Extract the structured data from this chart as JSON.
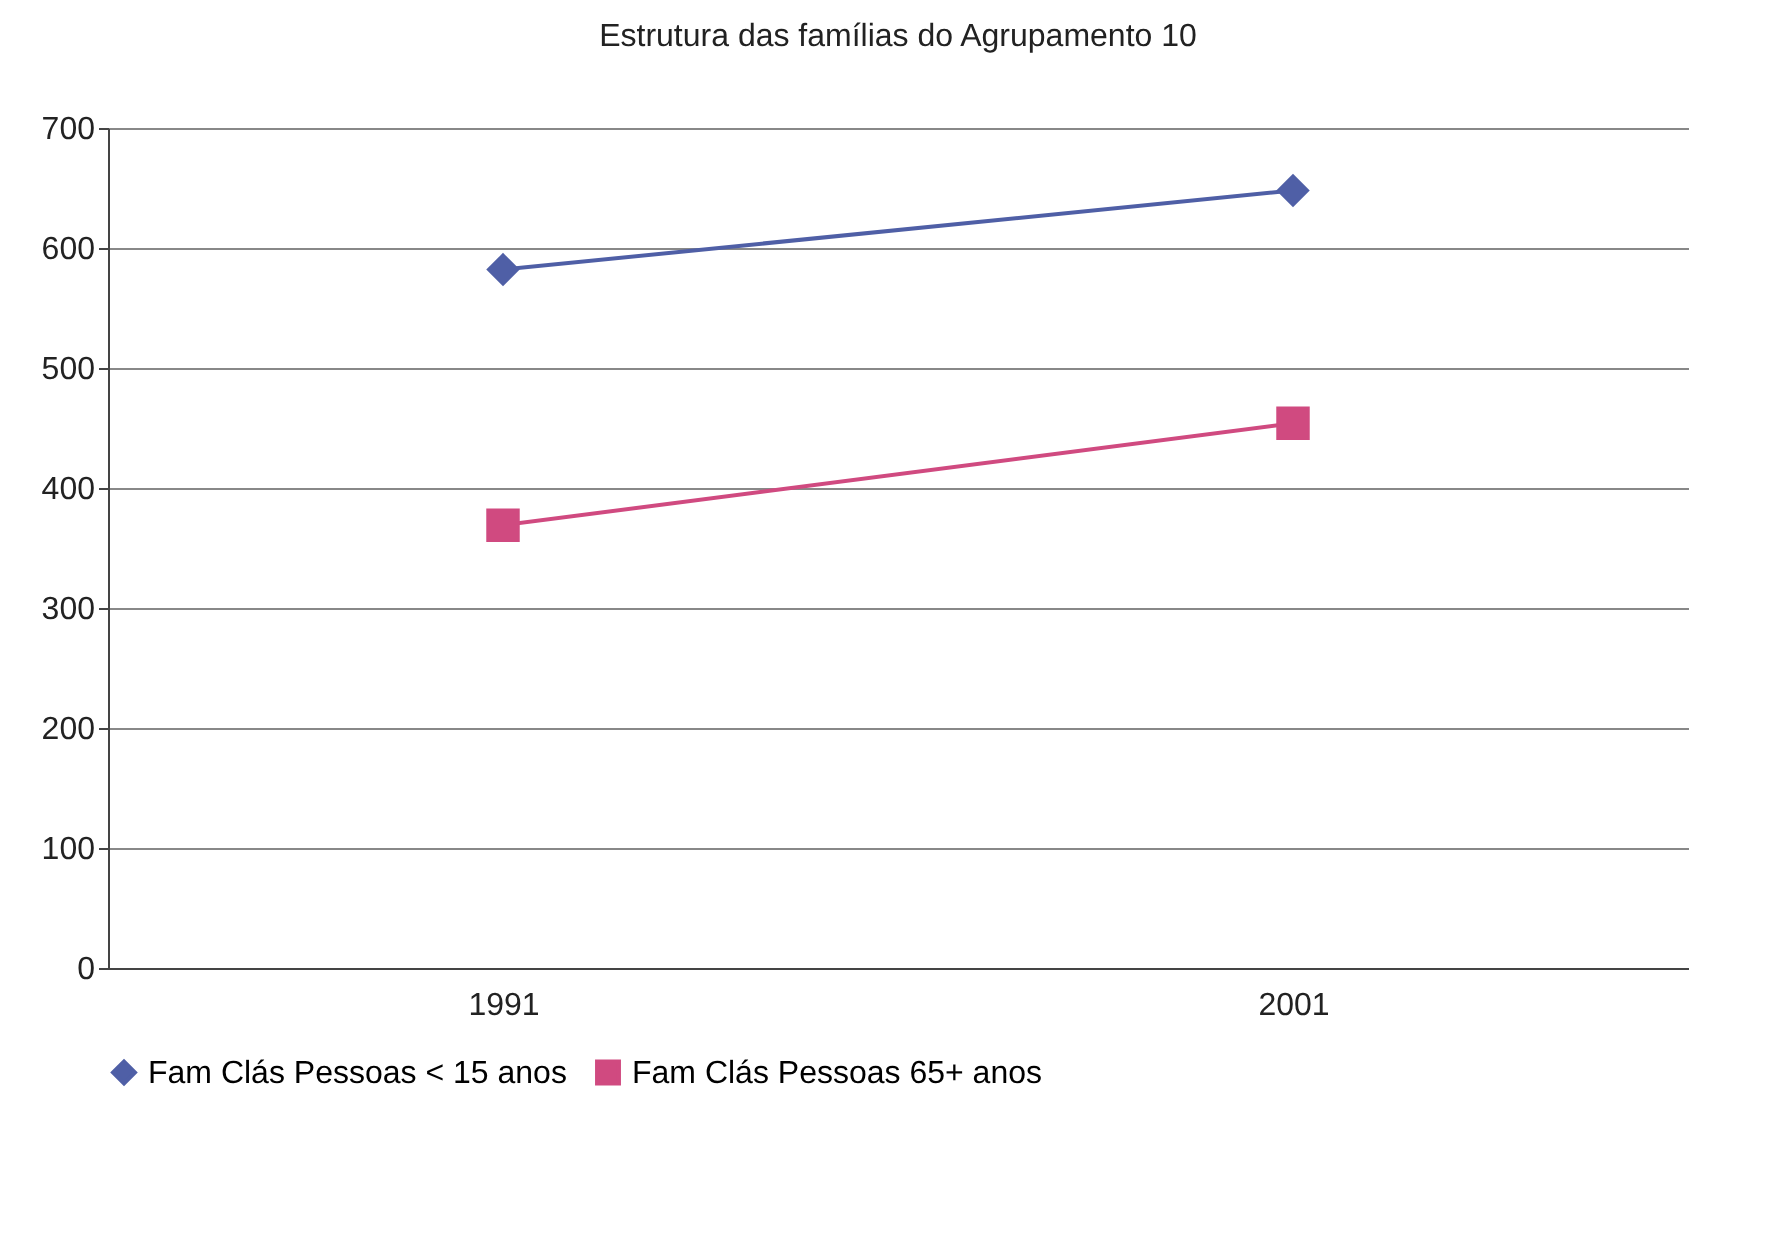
{
  "chart_data": {
    "type": "line",
    "title": "Estrutura das famílias do Agrupamento 10",
    "categories": [
      "1991",
      "2001"
    ],
    "series": [
      {
        "name": "Fam Clás Pessoas < 15 anos",
        "color": "#4f5fa6",
        "values": [
          582,
          648
        ],
        "marker": "diamond"
      },
      {
        "name": "Fam Clás Pessoas 65+ anos",
        "color": "#d04a80",
        "values": [
          369,
          454
        ],
        "marker": "square"
      }
    ],
    "ylim": [
      0,
      700
    ],
    "yticks": [
      0,
      100,
      200,
      300,
      400,
      500,
      600,
      700
    ],
    "grid": "y",
    "legend": "bottom"
  }
}
